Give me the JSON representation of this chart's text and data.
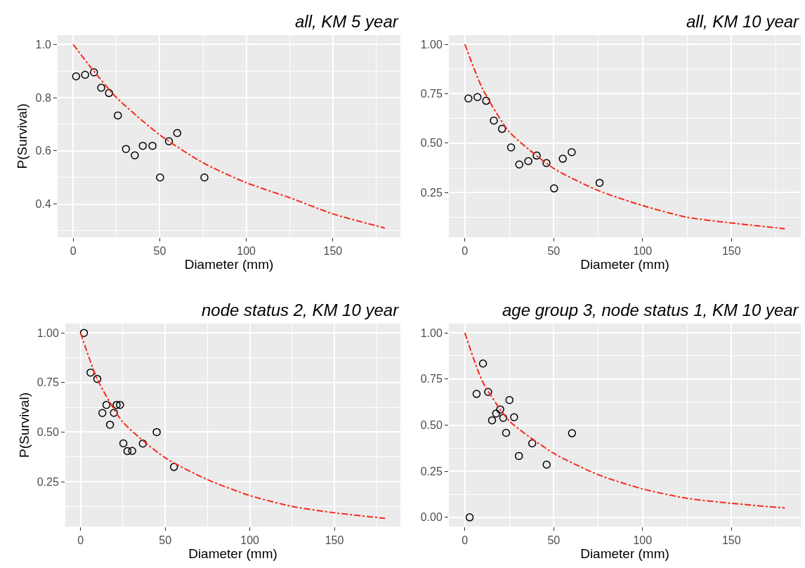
{
  "chart_data": [
    {
      "type": "scatter",
      "title": "all, KM 5 year",
      "xlabel": "Diameter (mm)",
      "ylabel": "P(Survival)",
      "xlim": [
        -9,
        189
      ],
      "ylim": [
        0.275,
        1.035
      ],
      "xticks": [
        0,
        50,
        100,
        150
      ],
      "yticks": [
        {
          "value": 0.4,
          "label": "0.4"
        },
        {
          "value": 0.6,
          "label": "0.6"
        },
        {
          "value": 0.8,
          "label": "0.8"
        },
        {
          "value": 1,
          "label": "1.0"
        }
      ],
      "grid": true,
      "series": [
        {
          "marker": "circle",
          "color": "#000000",
          "x": [
            1.7,
            6.9,
            12.0,
            16.2,
            20.7,
            25.8,
            30.5,
            35.6,
            40.2,
            45.8,
            50.2,
            55.3,
            60.1,
            75.8
          ],
          "values": [
            0.88,
            0.886,
            0.895,
            0.837,
            0.817,
            0.733,
            0.607,
            0.583,
            0.619,
            0.619,
            0.5,
            0.636,
            0.667,
            0.5
          ]
        },
        {
          "type": "line",
          "marker": "none",
          "line_style": "dashed",
          "color": "#f8291c",
          "x": [
            0,
            10,
            25,
            50,
            75,
            100,
            125,
            150,
            180
          ],
          "values": [
            1.0,
            0.915,
            0.8,
            0.66,
            0.555,
            0.48,
            0.424,
            0.363,
            0.31
          ]
        }
      ]
    },
    {
      "type": "scatter",
      "title": "all, KM 10 year",
      "xlabel": "Diameter (mm)",
      "xlim": [
        -9,
        189
      ],
      "ylim": [
        0.0235,
        1.0465
      ],
      "xticks": [
        0,
        50,
        100,
        150
      ],
      "yticks": [
        {
          "value": 0.25,
          "label": "0.25"
        },
        {
          "value": 0.5,
          "label": "0.50"
        },
        {
          "value": 0.75,
          "label": "0.75"
        },
        {
          "value": 1,
          "label": "1.00"
        }
      ],
      "grid": true,
      "series": [
        {
          "marker": "circle",
          "color": "#000000",
          "x": [
            2.0,
            7.1,
            12.0,
            16.3,
            20.9,
            26.0,
            30.6,
            35.7,
            40.4,
            45.9,
            50.2,
            55.1,
            60.1,
            75.8
          ],
          "values": [
            0.726,
            0.733,
            0.714,
            0.614,
            0.572,
            0.478,
            0.392,
            0.409,
            0.437,
            0.399,
            0.271,
            0.421,
            0.454,
            0.299
          ]
        },
        {
          "type": "line",
          "marker": "none",
          "line_style": "dashed",
          "color": "#f8291c",
          "x": [
            0,
            10,
            25,
            50,
            75,
            100,
            125,
            150,
            180
          ],
          "values": [
            1.0,
            0.774,
            0.557,
            0.372,
            0.26,
            0.184,
            0.125,
            0.096,
            0.067
          ]
        }
      ]
    },
    {
      "type": "scatter",
      "title": "node status 2, KM 10 year",
      "xlabel": "Diameter (mm)",
      "ylabel": "P(Survival)",
      "xlim": [
        -9,
        189
      ],
      "ylim": [
        0.0235,
        1.0465
      ],
      "xticks": [
        0,
        50,
        100,
        150
      ],
      "yticks": [
        {
          "value": 0.25,
          "label": "0.25"
        },
        {
          "value": 0.5,
          "label": "0.50"
        },
        {
          "value": 0.75,
          "label": "0.75"
        },
        {
          "value": 1,
          "label": "1.00"
        }
      ],
      "grid": true,
      "series": [
        {
          "marker": "circle",
          "color": "#000000",
          "x": [
            2.0,
            5.9,
            9.9,
            12.9,
            15.3,
            17.4,
            19.7,
            21.3,
            23.3,
            25.3,
            27.7,
            30.5,
            36.8,
            45.0,
            55.2
          ],
          "values": [
            1.0,
            0.8,
            0.768,
            0.596,
            0.637,
            0.537,
            0.597,
            0.637,
            0.637,
            0.443,
            0.404,
            0.405,
            0.442,
            0.5,
            0.324
          ]
        },
        {
          "type": "line",
          "marker": "none",
          "line_style": "dashed",
          "color": "#f8291c",
          "x": [
            0,
            10,
            25,
            50,
            75,
            100,
            125,
            150,
            180
          ],
          "values": [
            1.0,
            0.764,
            0.55,
            0.37,
            0.26,
            0.18,
            0.125,
            0.093,
            0.065
          ]
        }
      ]
    },
    {
      "type": "scatter",
      "title": "age group 3, node status 1, KM 10 year",
      "xlabel": "Diameter (mm)",
      "xlim": [
        -9,
        189
      ],
      "ylim": [
        -0.05,
        1.05
      ],
      "xticks": [
        0,
        50,
        100,
        150
      ],
      "yticks": [
        {
          "value": 0,
          "label": "0.00"
        },
        {
          "value": 0.25,
          "label": "0.25"
        },
        {
          "value": 0.5,
          "label": "0.50"
        },
        {
          "value": 0.75,
          "label": "0.75"
        },
        {
          "value": 1,
          "label": "1.00"
        }
      ],
      "grid": true,
      "series": [
        {
          "marker": "circle",
          "color": "#000000",
          "x": [
            2.7,
            6.6,
            10.2,
            13.1,
            15.3,
            17.6,
            19.9,
            21.6,
            23.2,
            25.1,
            27.7,
            30.4,
            37.9,
            46.0,
            60.3
          ],
          "values": [
            0.0,
            0.669,
            0.834,
            0.68,
            0.526,
            0.563,
            0.585,
            0.539,
            0.458,
            0.636,
            0.543,
            0.333,
            0.401,
            0.286,
            0.456
          ]
        },
        {
          "type": "line",
          "marker": "none",
          "line_style": "dashed",
          "color": "#f8291c",
          "x": [
            0,
            10,
            25,
            50,
            75,
            100,
            125,
            150,
            180
          ],
          "values": [
            1.0,
            0.735,
            0.523,
            0.347,
            0.231,
            0.154,
            0.103,
            0.076,
            0.051
          ]
        }
      ]
    }
  ]
}
